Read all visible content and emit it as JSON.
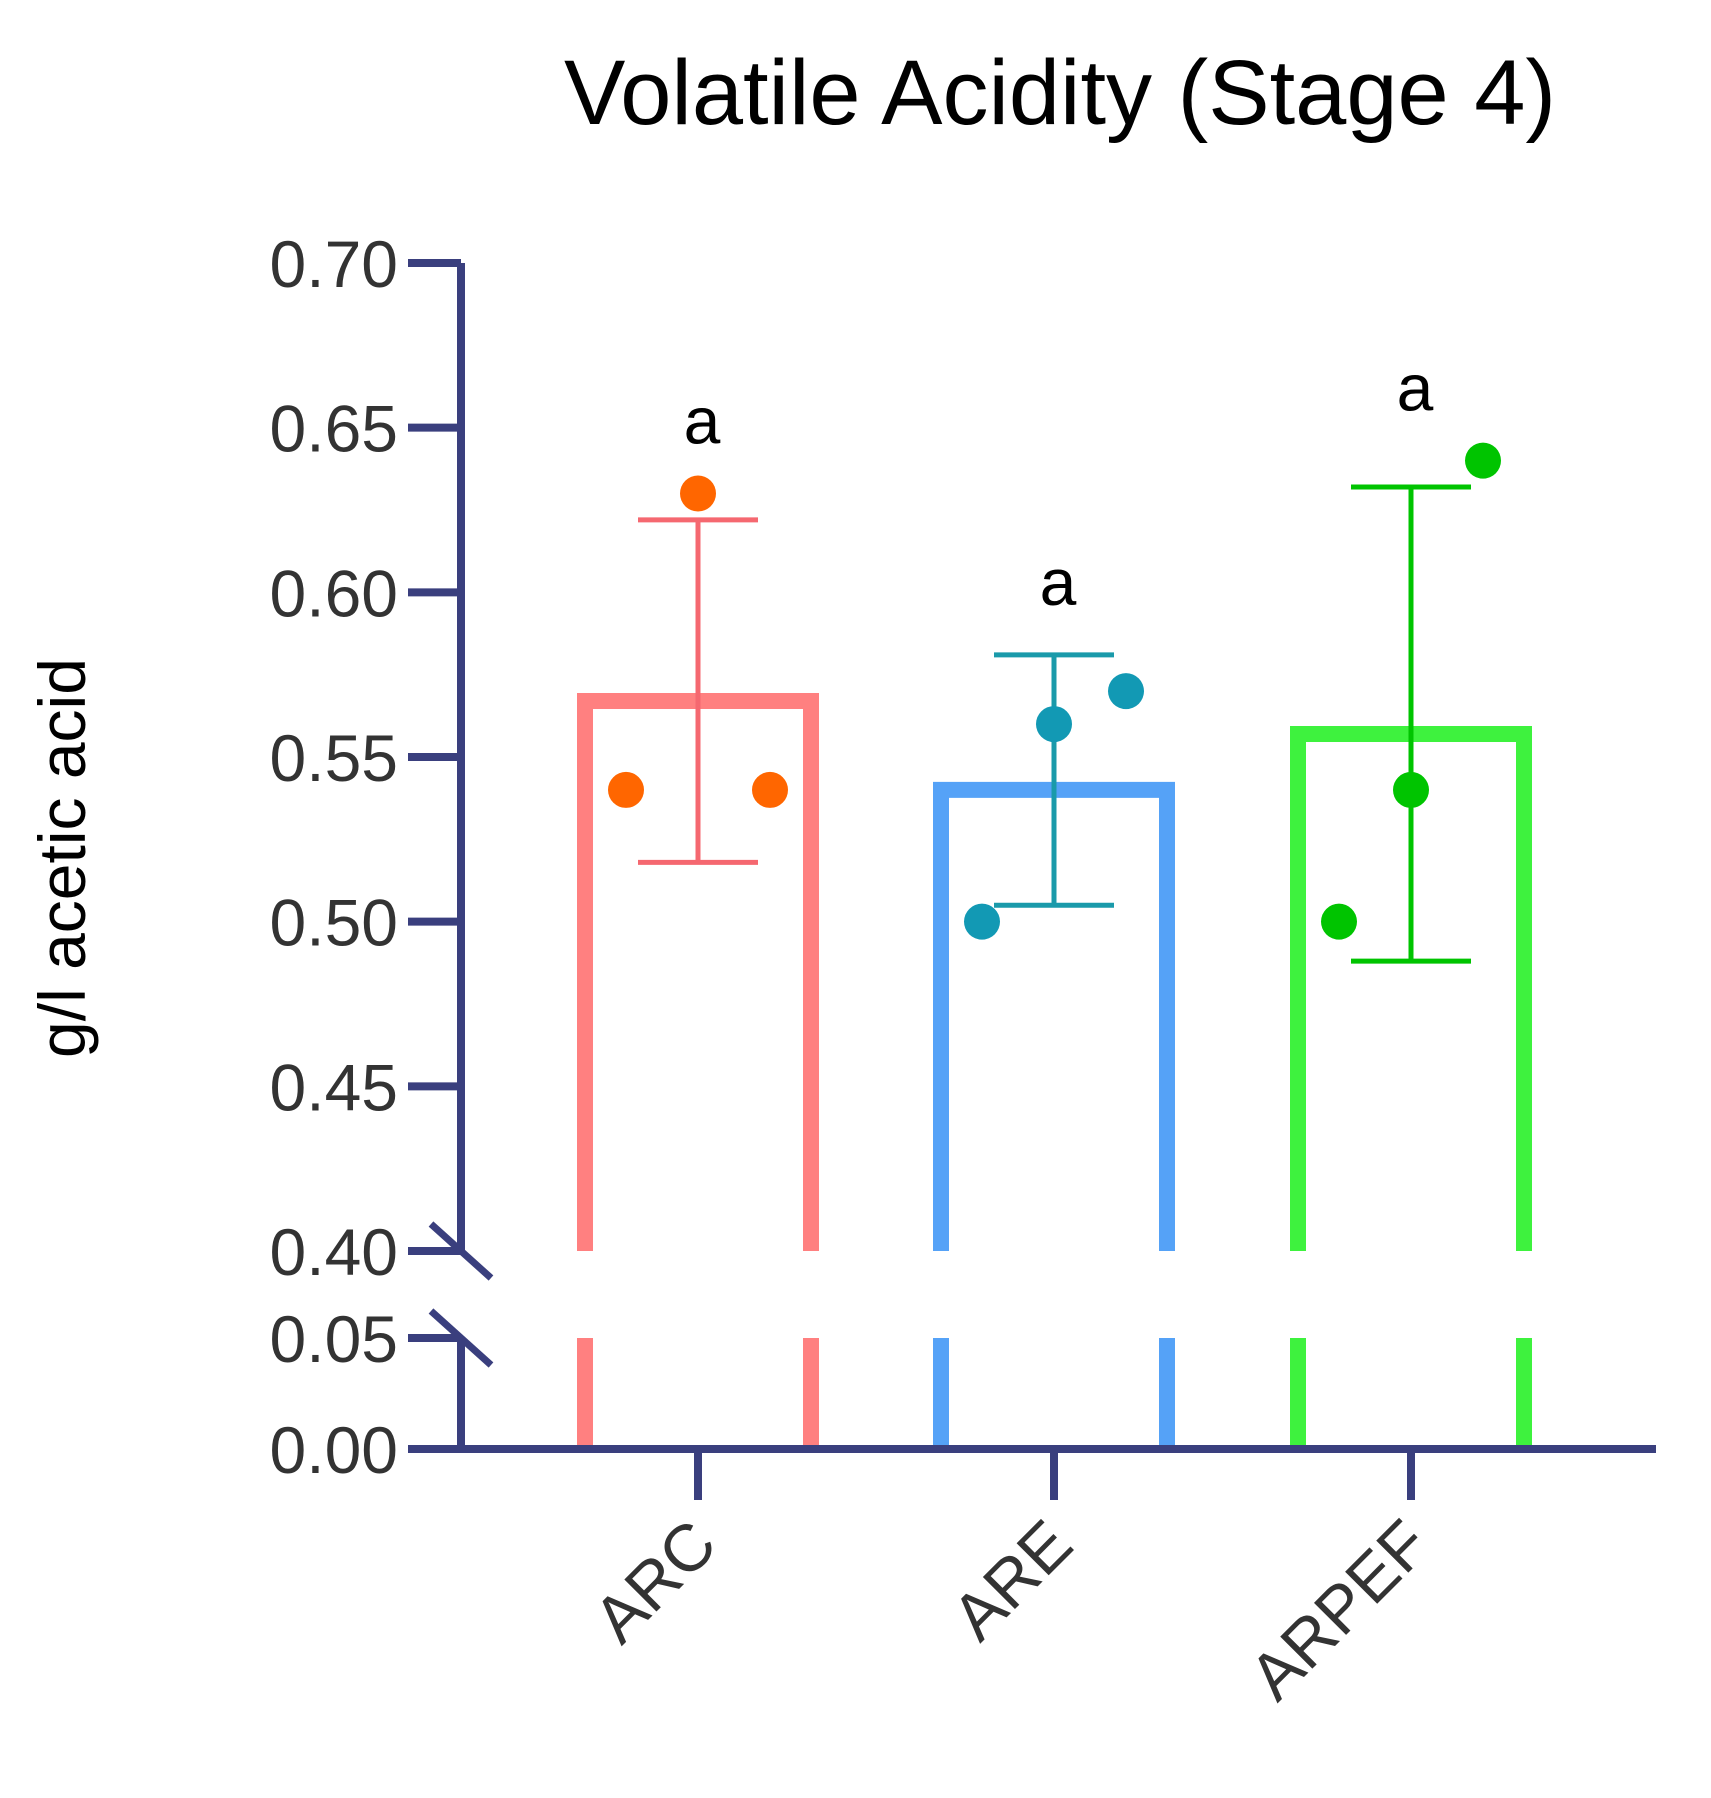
{
  "chart_data": {
    "type": "bar",
    "title": "Volatile Acidity (Stage 4)",
    "xlabel": "",
    "ylabel": "g/l acetic acid",
    "axis_color": "#3a3f7e",
    "y_axis_break": {
      "lower_range": [
        0.0,
        0.05
      ],
      "upper_range": [
        0.4,
        0.7
      ]
    },
    "yticks_upper": [
      "0.70",
      "0.65",
      "0.60",
      "0.55",
      "0.50",
      "0.45",
      "0.40"
    ],
    "yticks_upper_values": [
      0.7,
      0.65,
      0.6,
      0.55,
      0.5,
      0.45,
      0.4
    ],
    "yticks_lower": [
      "0.05",
      "0.00"
    ],
    "yticks_lower_values": [
      0.05,
      0.0
    ],
    "categories": [
      "ARC",
      "ARE",
      "ARPEF"
    ],
    "values": [
      0.567,
      0.54,
      0.557
    ],
    "error_upper": [
      0.622,
      0.581,
      0.632
    ],
    "error_lower": [
      0.518,
      0.505,
      0.488
    ],
    "points": [
      [
        0.54,
        0.63,
        0.54
      ],
      [
        0.5,
        0.56,
        0.57
      ],
      [
        0.5,
        0.54,
        0.64
      ]
    ],
    "significance": [
      "a",
      "a",
      "a"
    ],
    "bar_colors": [
      "#ff8080",
      "#55a2f7",
      "#3ef23e"
    ],
    "point_colors": [
      "#ff6600",
      "#1299b4",
      "#00c400"
    ],
    "errorbar_colors": [
      "#f56870",
      "#1a9aaa",
      "#00c400"
    ]
  }
}
